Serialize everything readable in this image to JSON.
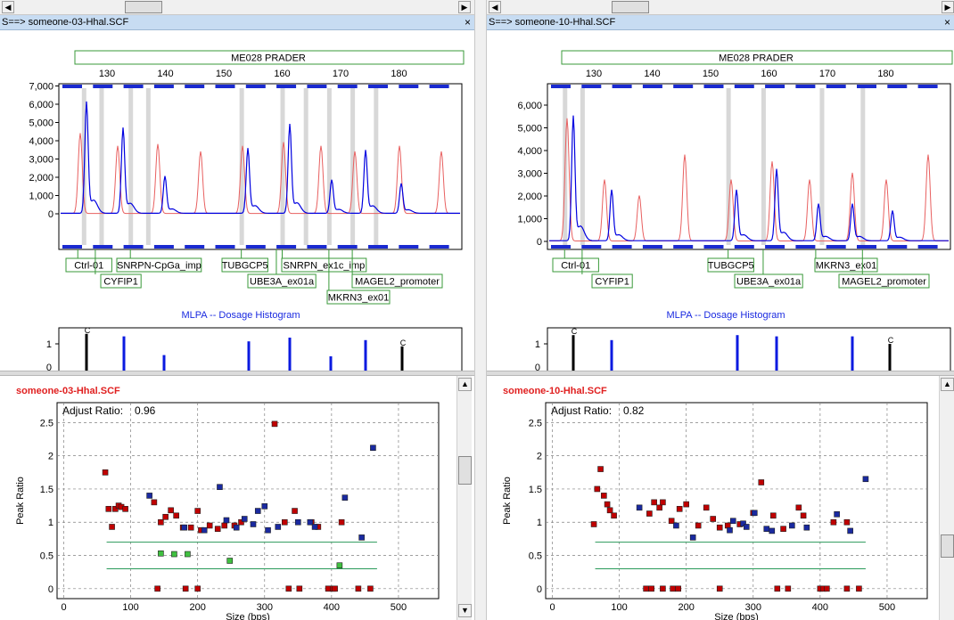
{
  "panels": [
    {
      "file_label": "S==> someone-03-Hhal.SCF",
      "close_glyph": "×",
      "kit": "ME028 PRADER",
      "size_ticks": [
        130,
        140,
        150,
        160,
        170,
        180
      ],
      "ylabels": [
        "7,000",
        "6,000",
        "5,000",
        "4,000",
        "3,000",
        "2,000",
        "1,000",
        "0"
      ],
      "probes_row1": [
        {
          "label": "Ctrl-01",
          "size": 125
        },
        {
          "label": "SNRPN-CpGa_imp",
          "size": 134
        },
        {
          "label": "TUBGCP5",
          "size": 153
        },
        {
          "label": "SNRPN_ex1c_imp",
          "size": 160
        }
      ],
      "probes_row2": [
        {
          "label": "CYFIP1",
          "size": 128
        },
        {
          "label": "UBE3A_ex01a",
          "size": 159
        },
        {
          "label": "MAGEL2_promoter",
          "size": 172
        }
      ],
      "probes_row3": [
        {
          "label": "MKRN3_ex01",
          "size": 168
        }
      ],
      "histogram_title": "MLPA -- Dosage Histogram",
      "histogram_bars": [
        {
          "size": 125,
          "value": 1.4,
          "control": true,
          "marker": "C"
        },
        {
          "size": 131,
          "value": 1.3
        },
        {
          "size": 137,
          "value": 0.55
        },
        {
          "size": 153,
          "value": 1.1
        },
        {
          "size": 159,
          "value": 1.25
        },
        {
          "size": 164,
          "value": 0.5
        },
        {
          "size": 169,
          "value": 1.15
        },
        {
          "size": 176,
          "value": 0.9,
          "control": true,
          "marker": "C"
        }
      ],
      "histogram_y": [
        "1",
        "0"
      ],
      "ratio": {
        "title": "someone-03-Hhal.SCF",
        "adjust_label": "Adjust Ratio:",
        "adjust_value": "0.96",
        "ylabel": "Peak Ratio",
        "xlabel": "Size (bps)",
        "yticks": [
          "0",
          "0.5",
          "1",
          "1.5",
          "2",
          "2.5"
        ],
        "xticks": [
          "0",
          "100",
          "200",
          "300",
          "400",
          "500"
        ]
      },
      "chart_data": {
        "type": "scatter",
        "xlabel": "Size (bps)",
        "ylabel": "Peak Ratio",
        "xlim": [
          -10,
          560
        ],
        "ylim": [
          -0.15,
          2.8
        ],
        "thresholds": [
          0.7,
          0.3
        ],
        "threshold_range": [
          64,
          468
        ],
        "series": [
          {
            "color": "#c00000",
            "points": [
              [
                62,
                1.75
              ],
              [
                67,
                1.2
              ],
              [
                72,
                0.93
              ],
              [
                77,
                1.2
              ],
              [
                82,
                1.25
              ],
              [
                86,
                1.23
              ],
              [
                92,
                1.2
              ],
              [
                135,
                1.3
              ],
              [
                145,
                1.0
              ],
              [
                152,
                1.08
              ],
              [
                160,
                1.18
              ],
              [
                168,
                1.1
              ],
              [
                178,
                0.92
              ],
              [
                190,
                0.92
              ],
              [
                200,
                1.17
              ],
              [
                205,
                0.88
              ],
              [
                218,
                0.95
              ],
              [
                230,
                0.9
              ],
              [
                240,
                0.95
              ],
              [
                255,
                0.95
              ],
              [
                265,
                1.0
              ],
              [
                315,
                2.48
              ],
              [
                330,
                1.0
              ],
              [
                345,
                1.17
              ],
              [
                370,
                1.0
              ],
              [
                380,
                0.93
              ],
              [
                415,
                1.0
              ],
              [
                140,
                0.0
              ],
              [
                182,
                0.0
              ],
              [
                200,
                0.0
              ],
              [
                336,
                0.0
              ],
              [
                352,
                0.0
              ],
              [
                395,
                0.0
              ],
              [
                402,
                0.0
              ],
              [
                405,
                0.0
              ],
              [
                440,
                0.0
              ],
              [
                458,
                0.0
              ]
            ]
          },
          {
            "color": "#1a2aa0",
            "points": [
              [
                128,
                1.4
              ],
              [
                180,
                0.92
              ],
              [
                210,
                0.88
              ],
              [
                233,
                1.53
              ],
              [
                243,
                1.03
              ],
              [
                258,
                0.92
              ],
              [
                270,
                1.05
              ],
              [
                283,
                0.97
              ],
              [
                290,
                1.17
              ],
              [
                300,
                1.24
              ],
              [
                305,
                0.88
              ],
              [
                320,
                0.93
              ],
              [
                350,
                1.0
              ],
              [
                368,
                1.0
              ],
              [
                375,
                0.93
              ],
              [
                420,
                1.37
              ],
              [
                445,
                0.77
              ],
              [
                462,
                2.12
              ]
            ]
          },
          {
            "color": "#40c040",
            "points": [
              [
                145,
                0.53
              ],
              [
                165,
                0.52
              ],
              [
                185,
                0.52
              ],
              [
                248,
                0.42
              ],
              [
                412,
                0.35
              ]
            ]
          }
        ]
      }
    },
    {
      "file_label": "S==> someone-10-Hhal.SCF",
      "close_glyph": "×",
      "kit": "ME028 PRADER",
      "size_ticks": [
        130,
        140,
        150,
        160,
        170,
        180
      ],
      "ylabels": [
        "6,000",
        "5,000",
        "4,000",
        "3,000",
        "2,000",
        "1,000",
        "0"
      ],
      "probes_row1": [
        {
          "label": "Ctrl-01",
          "size": 125
        },
        {
          "label": "TUBGCP5",
          "size": 153
        },
        {
          "label": "MKRN3_ex01",
          "size": 168
        }
      ],
      "probes_row2": [
        {
          "label": "CYFIP1",
          "size": 128
        },
        {
          "label": "UBE3A_ex01a",
          "size": 159
        },
        {
          "label": "MAGEL2_promoter",
          "size": 176
        }
      ],
      "probes_row3": [],
      "histogram_title": "MLPA -- Dosage Histogram",
      "histogram_bars": [
        {
          "size": 125,
          "value": 1.35,
          "control": true,
          "marker": "C"
        },
        {
          "size": 131,
          "value": 1.15
        },
        {
          "size": 153,
          "value": 1.35
        },
        {
          "size": 159,
          "value": 1.3
        },
        {
          "size": 169,
          "value": 1.3
        },
        {
          "size": 176,
          "value": 1.0,
          "control": true,
          "marker": "C"
        }
      ],
      "histogram_y": [
        "1",
        "0"
      ],
      "ratio": {
        "title": "someone-10-Hhal.SCF",
        "adjust_label": "Adjust Ratio:",
        "adjust_value": "0.82",
        "ylabel": "Peak Ratio",
        "xlabel": "Size (bps)",
        "yticks": [
          "0",
          "0.5",
          "1",
          "1.5",
          "2",
          "2.5"
        ],
        "xticks": [
          "0",
          "100",
          "200",
          "300",
          "400",
          "500"
        ]
      },
      "chart_data": {
        "type": "scatter",
        "xlabel": "Size (bps)",
        "ylabel": "Peak Ratio",
        "xlim": [
          -10,
          560
        ],
        "ylim": [
          -0.15,
          2.8
        ],
        "thresholds": [
          0.7,
          0.3
        ],
        "threshold_range": [
          64,
          468
        ],
        "series": [
          {
            "color": "#c00000",
            "points": [
              [
                62,
                0.97
              ],
              [
                67,
                1.5
              ],
              [
                72,
                1.8
              ],
              [
                77,
                1.4
              ],
              [
                82,
                1.27
              ],
              [
                86,
                1.18
              ],
              [
                92,
                1.1
              ],
              [
                145,
                1.13
              ],
              [
                152,
                1.3
              ],
              [
                160,
                1.22
              ],
              [
                165,
                1.3
              ],
              [
                178,
                1.02
              ],
              [
                190,
                1.2
              ],
              [
                200,
                1.27
              ],
              [
                218,
                0.95
              ],
              [
                230,
                1.22
              ],
              [
                240,
                1.05
              ],
              [
                250,
                0.92
              ],
              [
                262,
                0.95
              ],
              [
                280,
                0.97
              ],
              [
                300,
                1.14
              ],
              [
                312,
                1.6
              ],
              [
                330,
                1.1
              ],
              [
                345,
                0.9
              ],
              [
                368,
                1.22
              ],
              [
                375,
                1.1
              ],
              [
                420,
                1.0
              ],
              [
                440,
                1.0
              ],
              [
                140,
                0.0
              ],
              [
                148,
                0.0
              ],
              [
                165,
                0.0
              ],
              [
                180,
                0.0
              ],
              [
                188,
                0.0
              ],
              [
                250,
                0.0
              ],
              [
                336,
                0.0
              ],
              [
                352,
                0.0
              ],
              [
                400,
                0.0
              ],
              [
                405,
                0.0
              ],
              [
                410,
                0.0
              ],
              [
                440,
                0.0
              ],
              [
                458,
                0.0
              ]
            ]
          },
          {
            "color": "#1a2aa0",
            "points": [
              [
                130,
                1.22
              ],
              [
                185,
                0.95
              ],
              [
                210,
                0.77
              ],
              [
                265,
                0.88
              ],
              [
                270,
                1.02
              ],
              [
                285,
                0.98
              ],
              [
                290,
                0.93
              ],
              [
                302,
                1.14
              ],
              [
                320,
                0.9
              ],
              [
                328,
                0.87
              ],
              [
                358,
                0.95
              ],
              [
                380,
                0.92
              ],
              [
                425,
                1.12
              ],
              [
                445,
                0.87
              ],
              [
                468,
                1.65
              ]
            ]
          }
        ]
      }
    }
  ]
}
